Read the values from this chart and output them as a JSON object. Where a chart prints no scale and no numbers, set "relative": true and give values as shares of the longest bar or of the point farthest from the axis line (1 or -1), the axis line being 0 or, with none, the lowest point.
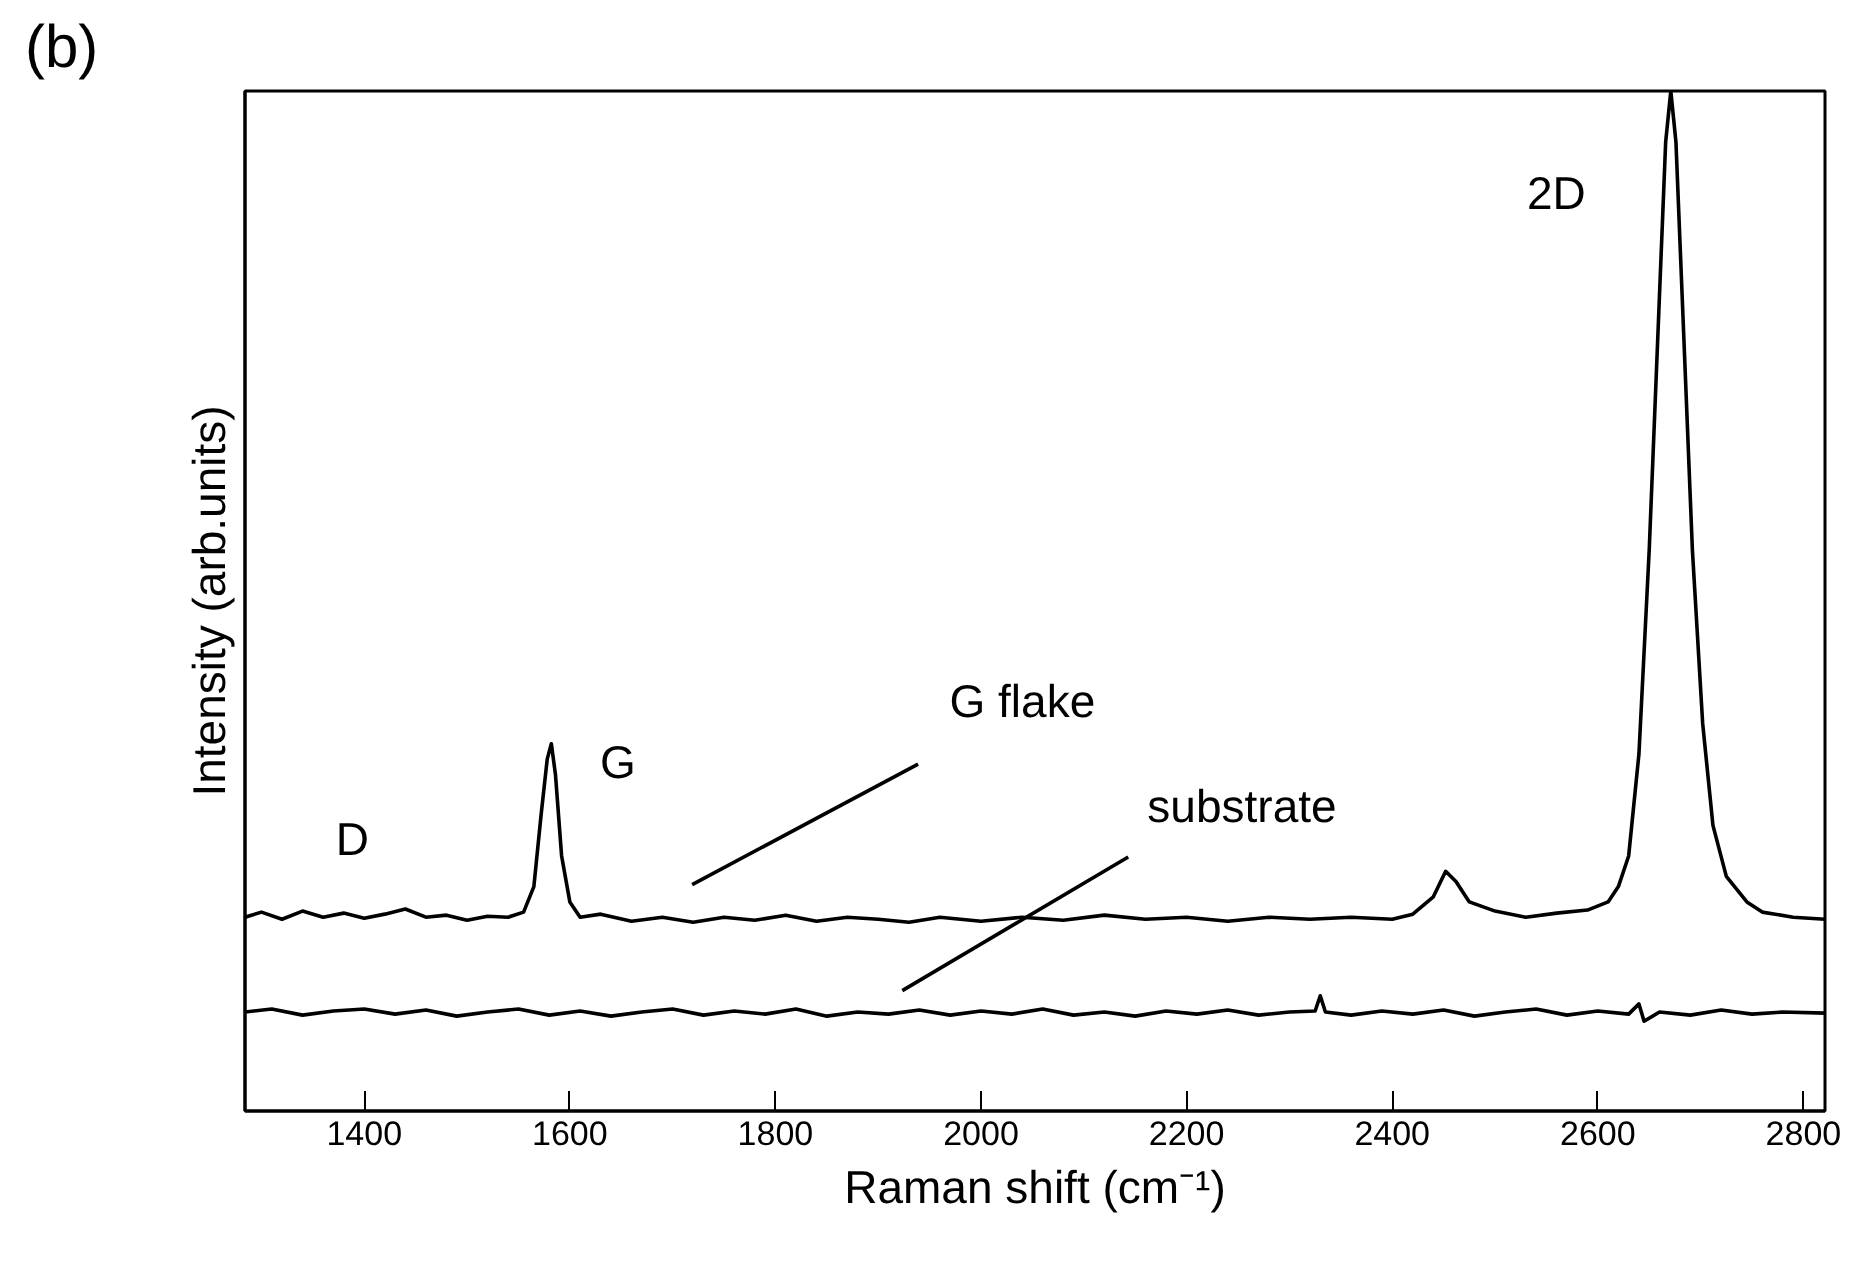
{
  "chart_data": {
    "type": "line",
    "title": "(b)",
    "xlabel": "Raman shift (cm⁻¹)",
    "ylabel": "Intensity (arb.units)",
    "relative": true,
    "xlim": [
      1284,
      2821
    ],
    "xticks": [
      1400,
      1600,
      1800,
      2000,
      2200,
      2400,
      2600,
      2800
    ],
    "grid": false,
    "marker": "none",
    "line_style": "solid",
    "series": [
      {
        "color": "#000000",
        "x": [
          1284,
          1300,
          1320,
          1340,
          1360,
          1380,
          1400,
          1420,
          1440,
          1460,
          1480,
          1500,
          1520,
          1540,
          1555,
          1565,
          1572,
          1578,
          1582,
          1586,
          1592,
          1600,
          1610,
          1630,
          1660,
          1690,
          1720,
          1750,
          1780,
          1810,
          1840,
          1870,
          1900,
          1930,
          1960,
          2000,
          2040,
          2080,
          2120,
          2160,
          2200,
          2240,
          2280,
          2320,
          2360,
          2400,
          2420,
          2440,
          2452,
          2462,
          2475,
          2500,
          2530,
          2560,
          2590,
          2610,
          2620,
          2630,
          2640,
          2650,
          2660,
          2666,
          2671,
          2676,
          2682,
          2692,
          2702,
          2712,
          2725,
          2745,
          2760,
          2790,
          2821
        ],
        "values": [
          0.19,
          0.195,
          0.188,
          0.196,
          0.19,
          0.194,
          0.189,
          0.193,
          0.198,
          0.19,
          0.192,
          0.187,
          0.191,
          0.19,
          0.195,
          0.22,
          0.29,
          0.345,
          0.36,
          0.33,
          0.25,
          0.205,
          0.19,
          0.193,
          0.186,
          0.19,
          0.185,
          0.19,
          0.187,
          0.192,
          0.186,
          0.19,
          0.188,
          0.185,
          0.19,
          0.186,
          0.19,
          0.187,
          0.192,
          0.188,
          0.19,
          0.186,
          0.19,
          0.188,
          0.19,
          0.188,
          0.193,
          0.21,
          0.235,
          0.225,
          0.205,
          0.196,
          0.19,
          0.194,
          0.197,
          0.205,
          0.22,
          0.25,
          0.35,
          0.55,
          0.8,
          0.95,
          1.0,
          0.95,
          0.8,
          0.55,
          0.38,
          0.28,
          0.23,
          0.205,
          0.195,
          0.19,
          0.188
        ]
      },
      {
        "color": "#000000",
        "x": [
          1284,
          1310,
          1340,
          1370,
          1400,
          1430,
          1460,
          1490,
          1520,
          1550,
          1580,
          1610,
          1640,
          1670,
          1700,
          1730,
          1760,
          1790,
          1820,
          1850,
          1880,
          1910,
          1940,
          1970,
          2000,
          2030,
          2060,
          2090,
          2120,
          2150,
          2180,
          2210,
          2240,
          2270,
          2300,
          2325,
          2330,
          2335,
          2360,
          2390,
          2420,
          2450,
          2480,
          2510,
          2540,
          2570,
          2600,
          2630,
          2640,
          2645,
          2660,
          2690,
          2720,
          2750,
          2780,
          2821
        ],
        "values": [
          0.097,
          0.1,
          0.094,
          0.098,
          0.1,
          0.095,
          0.099,
          0.093,
          0.097,
          0.1,
          0.094,
          0.098,
          0.093,
          0.097,
          0.1,
          0.094,
          0.098,
          0.095,
          0.1,
          0.093,
          0.097,
          0.095,
          0.099,
          0.094,
          0.098,
          0.095,
          0.1,
          0.094,
          0.097,
          0.093,
          0.098,
          0.095,
          0.099,
          0.094,
          0.097,
          0.098,
          0.113,
          0.097,
          0.094,
          0.098,
          0.095,
          0.099,
          0.093,
          0.097,
          0.1,
          0.094,
          0.098,
          0.095,
          0.105,
          0.088,
          0.097,
          0.094,
          0.099,
          0.095,
          0.097,
          0.096
        ]
      }
    ],
    "annotations": [
      "D",
      "G",
      "2D",
      "G flake",
      "substrate"
    ]
  }
}
